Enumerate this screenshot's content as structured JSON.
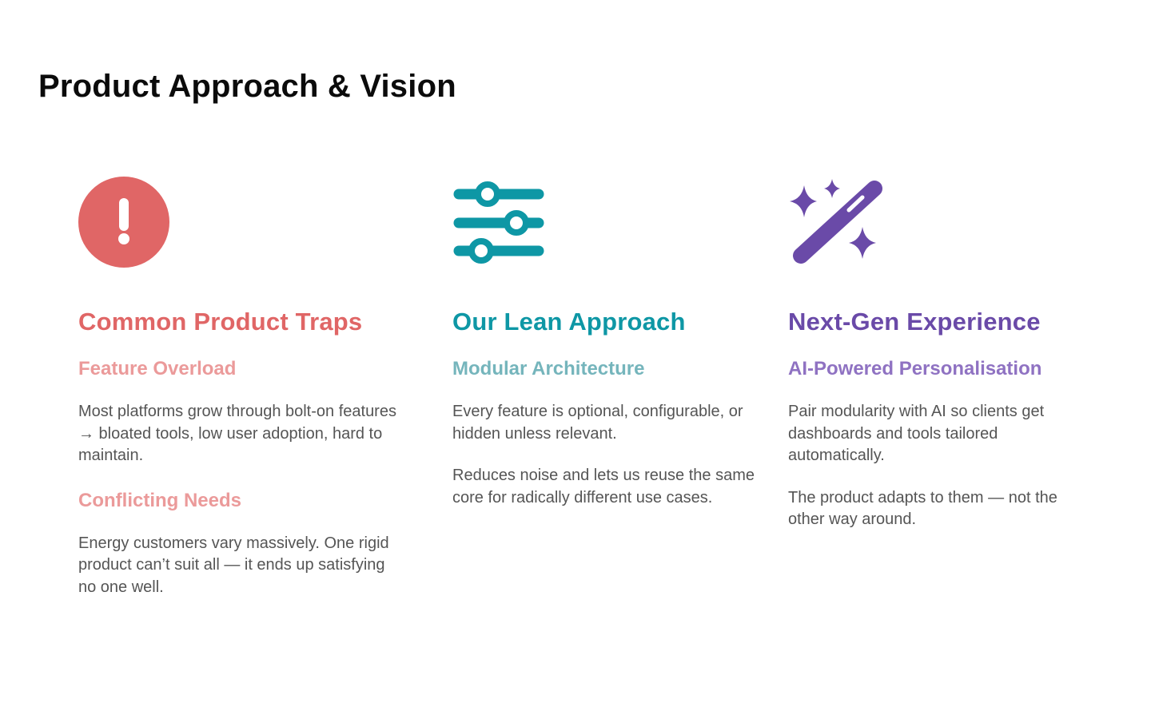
{
  "page": {
    "title": "Product Approach & Vision"
  },
  "columns": [
    {
      "icon": "exclamation-circle-icon",
      "accent": "#e06666",
      "title": "Common Product Traps",
      "sections": [
        {
          "subtitle": "Feature Overload",
          "paragraphs": [
            "Most platforms grow through bolt-on features → bloated tools, low user adoption, hard to maintain."
          ]
        },
        {
          "subtitle": "Conflicting Needs",
          "paragraphs": [
            "Energy customers vary massively. One rigid product can’t suit all — it ends up satisfying no one well."
          ]
        }
      ]
    },
    {
      "icon": "sliders-icon",
      "accent": "#0e97a5",
      "title": "Our Lean Approach",
      "sections": [
        {
          "subtitle": "Modular Architecture",
          "paragraphs": [
            "Every feature is optional, configurable, or hidden unless relevant.",
            "Reduces noise and lets us reuse the same core for radically different use cases."
          ]
        }
      ]
    },
    {
      "icon": "magic-wand-icon",
      "accent": "#6a4aa8",
      "title": "Next-Gen Experience",
      "sections": [
        {
          "subtitle": "AI-Powered Personalisation",
          "paragraphs": [
            "Pair modularity with AI so clients get dashboards and tools tailored automatically.",
            "The product adapts to them — not the other way around."
          ]
        }
      ]
    }
  ]
}
